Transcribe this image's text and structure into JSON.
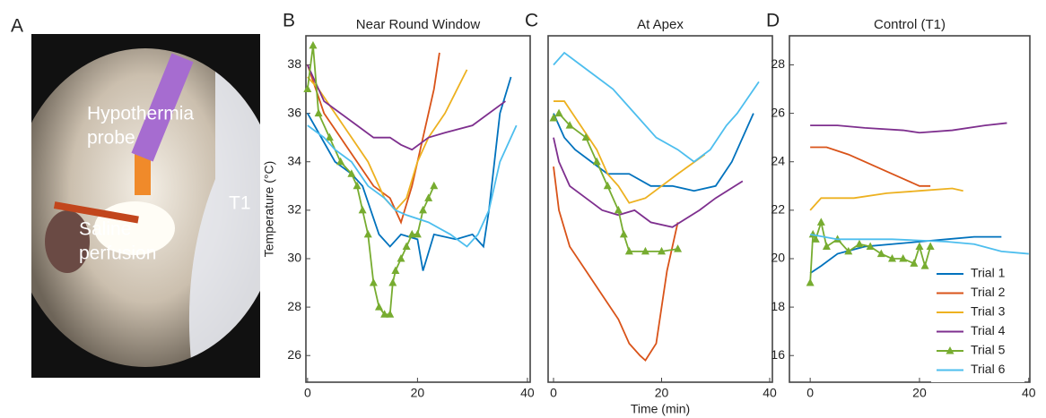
{
  "panel_a": {
    "label": "A",
    "annotations": [
      {
        "lines": [
          "Hypothermia",
          "probe"
        ]
      },
      {
        "lines": [
          "Saline",
          "perfusion"
        ]
      },
      {
        "lines": [
          "T1"
        ]
      }
    ]
  },
  "chart_data": [
    {
      "type": "line",
      "panel": "B",
      "title": "Near Round Window",
      "ylabel": "Temperature (°C)",
      "xlim": [
        -0.3,
        40.5
      ],
      "ylim": [
        24.9,
        39.2
      ],
      "xticks": [
        0,
        20,
        40
      ],
      "yticks": [
        26,
        28,
        30,
        32,
        34,
        36,
        38
      ],
      "series": [
        {
          "color": "#0072bd",
          "x": [
            0,
            2,
            5,
            8,
            10,
            13,
            15,
            17,
            20,
            21,
            23,
            27,
            30,
            32,
            33,
            34,
            35,
            37
          ],
          "values": [
            36,
            35.2,
            34,
            33.5,
            33,
            31,
            30.5,
            31,
            30.8,
            29.5,
            31,
            30.8,
            31,
            30.5,
            32,
            34,
            36,
            37.5
          ]
        },
        {
          "color": "#d95319",
          "x": [
            0,
            3,
            6,
            9,
            12,
            15,
            17,
            19,
            21,
            23,
            24
          ],
          "values": [
            38,
            36,
            35,
            34,
            33,
            32.5,
            31.5,
            33,
            35,
            37,
            38.5
          ]
        },
        {
          "color": "#edb120",
          "x": [
            0,
            2,
            5,
            8,
            11,
            14,
            16,
            18,
            20,
            22,
            25,
            29
          ],
          "values": [
            37.5,
            37,
            36,
            35,
            34,
            32.5,
            32,
            32.5,
            34,
            35,
            36,
            37.8
          ]
        },
        {
          "color": "#7e2f8e",
          "x": [
            0,
            3,
            6,
            9,
            12,
            15,
            17,
            19,
            22,
            25,
            30,
            36
          ],
          "values": [
            38,
            36.5,
            36,
            35.5,
            35,
            35,
            34.7,
            34.5,
            35,
            35.2,
            35.5,
            36.5
          ]
        },
        {
          "color": "#77ac30",
          "marker": "triangle",
          "x": [
            0,
            1,
            2,
            4,
            6,
            8,
            9,
            10,
            11,
            12,
            13,
            14,
            15,
            15.5,
            16,
            17,
            18,
            19,
            20,
            21,
            22,
            23
          ],
          "values": [
            37,
            38.8,
            36,
            35,
            34,
            33.5,
            33,
            32,
            31,
            29,
            28,
            27.7,
            27.7,
            29,
            29.5,
            30,
            30.5,
            31,
            31,
            32,
            32.5,
            33
          ]
        },
        {
          "color": "#4dbeee",
          "x": [
            0,
            3,
            5,
            8,
            11,
            14,
            16,
            18,
            22,
            26,
            29,
            31,
            33,
            35,
            38
          ],
          "values": [
            35.5,
            35,
            34.5,
            34,
            33,
            32.5,
            32,
            31.8,
            31.5,
            31,
            30.5,
            31,
            32,
            34,
            35.5
          ]
        }
      ]
    },
    {
      "type": "line",
      "panel": "C",
      "title": "At Apex",
      "xlabel": "Time (min)",
      "xlim": [
        -1,
        40.5
      ],
      "ylim": [
        24.9,
        39.2
      ],
      "xticks": [
        0,
        20,
        40
      ],
      "series": [
        {
          "color": "#0072bd",
          "x": [
            0,
            2,
            4,
            7,
            10,
            14,
            18,
            22,
            26,
            30,
            33,
            37
          ],
          "values": [
            36,
            35,
            34.5,
            34,
            33.5,
            33.5,
            33,
            33,
            32.8,
            33,
            34,
            36
          ]
        },
        {
          "color": "#d95319",
          "x": [
            0,
            1,
            3,
            6,
            9,
            12,
            14,
            16,
            17,
            19,
            20,
            21,
            23
          ],
          "values": [
            33.8,
            32,
            30.5,
            29.5,
            28.5,
            27.5,
            26.5,
            26,
            25.8,
            26.5,
            28,
            29.5,
            31.5
          ]
        },
        {
          "color": "#edb120",
          "x": [
            0,
            2,
            5,
            8,
            10,
            12,
            14,
            17,
            20,
            23,
            28
          ],
          "values": [
            36.5,
            36.5,
            35.5,
            34.5,
            33.5,
            33,
            32.3,
            32.5,
            33,
            33.5,
            34.3
          ]
        },
        {
          "color": "#7e2f8e",
          "x": [
            0,
            1,
            3,
            6,
            9,
            12,
            15,
            18,
            22,
            27,
            30,
            35
          ],
          "values": [
            35,
            34,
            33,
            32.5,
            32,
            31.8,
            32,
            31.5,
            31.3,
            32,
            32.5,
            33.2
          ]
        },
        {
          "color": "#77ac30",
          "marker": "triangle",
          "x": [
            0,
            1,
            3,
            6,
            8,
            10,
            12,
            13,
            14,
            17,
            20,
            23
          ],
          "values": [
            35.8,
            36,
            35.5,
            35,
            34,
            33,
            32,
            31,
            30.3,
            30.3,
            30.3,
            30.4
          ]
        },
        {
          "color": "#4dbeee",
          "x": [
            0,
            2,
            5,
            8,
            11,
            15,
            19,
            23,
            26,
            29,
            32,
            34,
            38
          ],
          "values": [
            38,
            38.5,
            38,
            37.5,
            37,
            36,
            35,
            34.5,
            34,
            34.5,
            35.5,
            36,
            37.3
          ]
        }
      ]
    },
    {
      "type": "line",
      "panel": "D",
      "title": "Control (T1)",
      "legend": "lower right",
      "xlim": [
        -3.8,
        40.2
      ],
      "ylim": [
        14.9,
        29.2
      ],
      "xticks": [
        0,
        20,
        40
      ],
      "yticks": [
        16,
        18,
        20,
        22,
        24,
        26,
        28
      ],
      "series": [
        {
          "name": "Trial 1",
          "color": "#0072bd",
          "x": [
            0,
            2,
            5,
            10,
            15,
            20,
            25,
            30,
            35
          ],
          "values": [
            19.4,
            19.7,
            20.2,
            20.5,
            20.6,
            20.7,
            20.8,
            20.9,
            20.9
          ]
        },
        {
          "name": "Trial 2",
          "color": "#d95319",
          "x": [
            0,
            3,
            7,
            10,
            14,
            17,
            20,
            22
          ],
          "values": [
            24.6,
            24.6,
            24.3,
            24,
            23.6,
            23.3,
            23,
            23
          ]
        },
        {
          "name": "Trial 3",
          "color": "#edb120",
          "x": [
            0,
            2,
            8,
            14,
            20,
            26,
            28
          ],
          "values": [
            22,
            22.5,
            22.5,
            22.7,
            22.8,
            22.9,
            22.8
          ]
        },
        {
          "name": "Trial 4",
          "color": "#7e2f8e",
          "x": [
            0,
            5,
            10,
            17,
            20,
            26,
            32,
            36
          ],
          "values": [
            25.5,
            25.5,
            25.4,
            25.3,
            25.2,
            25.3,
            25.5,
            25.6
          ]
        },
        {
          "name": "Trial 5",
          "color": "#77ac30",
          "marker": "triangle",
          "x": [
            0,
            0.5,
            1,
            2,
            3,
            5,
            7,
            9,
            11,
            13,
            15,
            17,
            19,
            20,
            21,
            22
          ],
          "values": [
            19,
            21,
            20.8,
            21.5,
            20.5,
            20.8,
            20.3,
            20.6,
            20.5,
            20.2,
            20,
            20,
            19.8,
            20.5,
            19.7,
            20.5
          ]
        },
        {
          "name": "Trial 6",
          "color": "#4dbeee",
          "x": [
            0,
            5,
            15,
            25,
            30,
            35,
            40
          ],
          "values": [
            21,
            20.8,
            20.8,
            20.7,
            20.6,
            20.3,
            20.2
          ]
        }
      ]
    }
  ]
}
